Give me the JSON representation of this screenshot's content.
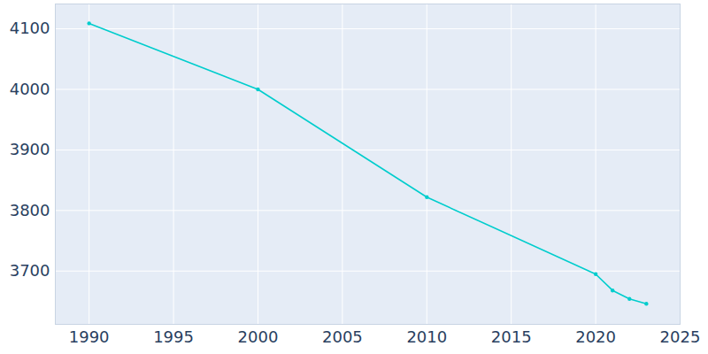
{
  "chart_data": {
    "type": "line",
    "x": [
      1990,
      2000,
      2010,
      2020,
      2021,
      2022,
      2023
    ],
    "values": [
      4109,
      4000,
      3822,
      3695,
      3668,
      3654,
      3646
    ],
    "color": "#00cdcd",
    "marker": "circle",
    "xlim": [
      1988,
      2025
    ],
    "xticks": [
      1990,
      1995,
      2000,
      2005,
      2010,
      2015,
      2020,
      2025
    ],
    "ylim": [
      3612,
      4141
    ],
    "yticks": [
      3700,
      3800,
      3900,
      4000,
      4100
    ],
    "grid": true
  }
}
